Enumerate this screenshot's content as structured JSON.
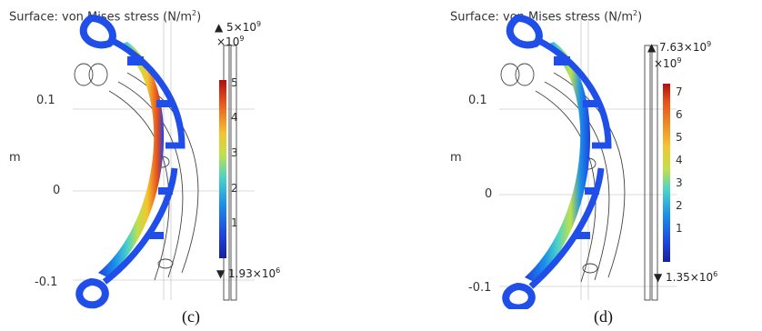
{
  "panels": [
    {
      "caption": "(c)",
      "title_prefix": "Surface: von Mises stress (N/m",
      "title_exp": "2",
      "title_suffix": ")",
      "max_label_mantissa": "5×10",
      "max_label_exp": "9",
      "multiplier_base": "×10",
      "multiplier_exp": "9",
      "min_label_mantissa": "1.93×10",
      "min_label_exp": "6",
      "colorbar_ticks": [
        "5",
        "4",
        "3",
        "2",
        "1"
      ],
      "y_ticks": [
        "0.1",
        "0",
        "-0.1"
      ],
      "y_axis_unit": "m"
    },
    {
      "caption": "(d)",
      "title_prefix": "Surface: von Mises stress (N/m",
      "title_exp": "2",
      "title_suffix": ")",
      "max_label_mantissa": "7.63×10",
      "max_label_exp": "9",
      "multiplier_base": "×10",
      "multiplier_exp": "9",
      "min_label_mantissa": "1.35×10",
      "min_label_exp": "6",
      "colorbar_ticks": [
        "7",
        "6",
        "5",
        "4",
        "3",
        "2",
        "1"
      ],
      "y_ticks": [
        "0.1",
        "0",
        "-0.1"
      ],
      "y_axis_unit": "m"
    }
  ],
  "colors": {
    "structure_blue": "#1f4fe8",
    "colorbar_gradient": [
      "#b40e0e",
      "#e8501a",
      "#f4c430",
      "#bfe14a",
      "#4ad2c9",
      "#1a8fea",
      "#1f3fe0",
      "#14219a"
    ],
    "outline": "#444444"
  },
  "icons": {
    "max_marker": "triangle-up",
    "min_marker": "triangle-down"
  }
}
